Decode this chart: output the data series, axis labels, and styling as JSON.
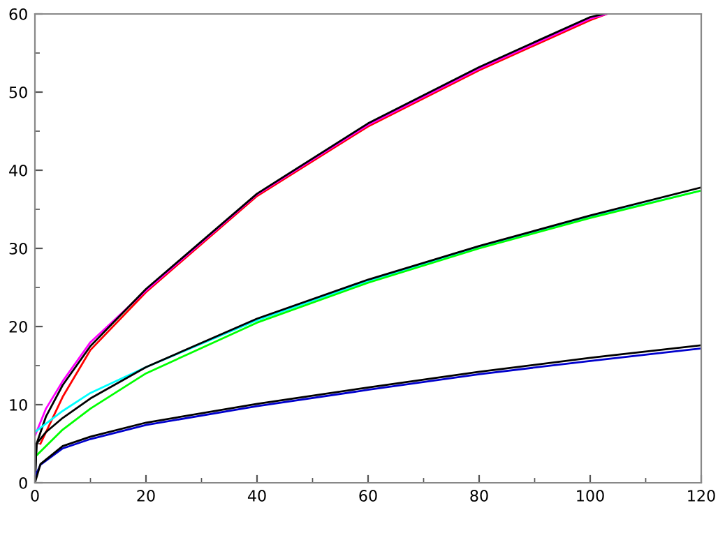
{
  "chart_data": {
    "type": "line",
    "xlim": [
      0,
      120
    ],
    "ylim": [
      0,
      60
    ],
    "xticks": [
      0,
      20,
      40,
      60,
      80,
      100,
      120
    ],
    "yticks": [
      0,
      10,
      20,
      30,
      40,
      50,
      60
    ],
    "grid": false,
    "legend": false,
    "marker": "none",
    "line_style": "solid",
    "series": [
      {
        "color": "#ff0000",
        "x": [
          1,
          5,
          10,
          20,
          40,
          60,
          80,
          100,
          103
        ],
        "values": [
          5,
          11,
          17,
          24.4,
          36.7,
          45.6,
          52.8,
          59.2,
          60
        ]
      },
      {
        "color": "#ff00ff",
        "x": [
          0,
          2,
          5,
          10,
          20,
          40,
          60,
          80,
          100,
          103
        ],
        "values": [
          6,
          9.5,
          13,
          18,
          24.6,
          36.9,
          45.8,
          53,
          59.4,
          60
        ]
      },
      {
        "color": "#000000",
        "x": [
          0,
          0.3,
          2,
          5,
          10,
          20,
          40,
          60,
          80,
          100,
          102.5
        ],
        "values": [
          0,
          5,
          8.5,
          12.5,
          17.5,
          24.8,
          37,
          46,
          53.2,
          59.6,
          60
        ]
      },
      {
        "color": "#00ffff",
        "x": [
          0,
          5,
          10,
          20,
          40,
          60,
          80,
          100,
          120
        ],
        "values": [
          6.5,
          9.2,
          11.5,
          14.8,
          20.8,
          25.8,
          30.1,
          34,
          37.4
        ]
      },
      {
        "color": "#00ff00",
        "x": [
          0,
          5,
          10,
          20,
          40,
          60,
          80,
          100,
          120
        ],
        "values": [
          3.3,
          6.8,
          9.5,
          14,
          20.5,
          25.6,
          30,
          33.9,
          37.4
        ]
      },
      {
        "color": "#000000",
        "x": [
          0,
          0.3,
          2,
          5,
          10,
          20,
          40,
          60,
          80,
          100,
          120
        ],
        "values": [
          0,
          5,
          6.5,
          8.3,
          10.8,
          14.8,
          21,
          26,
          30.3,
          34.2,
          37.8
        ]
      },
      {
        "color": "#0000cc",
        "x": [
          0,
          1,
          5,
          10,
          20,
          40,
          60,
          80,
          100,
          120
        ],
        "values": [
          0.8,
          2.3,
          4.4,
          5.6,
          7.4,
          9.8,
          11.9,
          13.9,
          15.6,
          17.2
        ]
      },
      {
        "color": "#000000",
        "x": [
          0,
          1,
          5,
          10,
          20,
          40,
          60,
          80,
          100,
          120
        ],
        "values": [
          0,
          2.4,
          4.7,
          5.9,
          7.7,
          10.1,
          12.2,
          14.2,
          16,
          17.6
        ]
      }
    ]
  }
}
